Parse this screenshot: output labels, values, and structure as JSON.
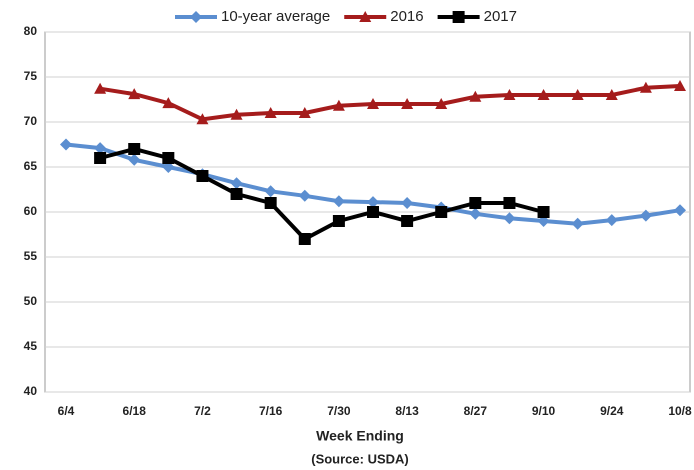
{
  "chart_data": {
    "type": "line",
    "categories": [
      "6/4",
      null,
      "6/18",
      null,
      "7/2",
      null,
      "7/16",
      null,
      "7/30",
      null,
      "8/13",
      null,
      "8/27",
      null,
      "9/10",
      null,
      "9/24",
      null,
      "10/8"
    ],
    "series": [
      {
        "name": "10-year average",
        "color": "#5b8ed0",
        "marker": "diamond",
        "values": [
          67.5,
          67.1,
          65.8,
          65.0,
          64.2,
          63.2,
          62.3,
          61.8,
          61.2,
          61.1,
          61.0,
          60.5,
          59.8,
          59.3,
          59.0,
          58.7,
          59.1,
          59.6,
          60.2
        ]
      },
      {
        "name": "2016",
        "color": "#a51c1c",
        "marker": "triangle",
        "values": [
          null,
          73.7,
          73.1,
          72.1,
          70.3,
          70.8,
          71.0,
          71.0,
          71.8,
          72.0,
          72.0,
          72.0,
          72.8,
          73.0,
          73.0,
          73.0,
          73.0,
          73.8,
          74.0
        ]
      },
      {
        "name": "2017",
        "color": "#000000",
        "marker": "square",
        "values": [
          null,
          66,
          67,
          66,
          64,
          62,
          61,
          57,
          59,
          60,
          59,
          60,
          61,
          61,
          60,
          null,
          null,
          null,
          null
        ]
      }
    ],
    "ylim": [
      40,
      80
    ],
    "yticks": [
      40,
      45,
      50,
      55,
      60,
      65,
      70,
      75,
      80
    ],
    "grid": true,
    "x_label": "Week Ending",
    "source": "(Source: USDA)",
    "legend": "top"
  }
}
